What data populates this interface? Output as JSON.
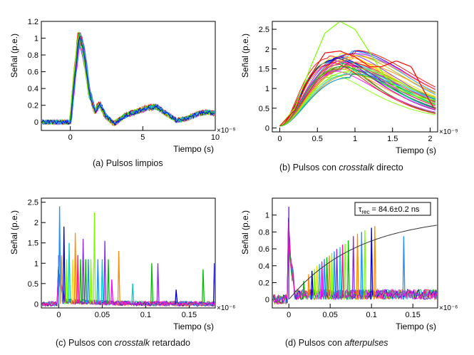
{
  "figure": {
    "captions": [
      {
        "pre": "(a) Pulsos limpios",
        "em": "",
        "post": ""
      },
      {
        "pre": "(b) Pulsos con ",
        "em": "crosstalk",
        "post": " directo"
      },
      {
        "pre": "(c) Pulsos con ",
        "em": "crosstalk",
        "post": " retardado"
      },
      {
        "pre": "(d) Pulsos con ",
        "em": "afterpulses",
        "post": ""
      }
    ]
  },
  "series_colors": [
    "#ff0000",
    "#ff8c00",
    "#ffd700",
    "#7fff00",
    "#00c000",
    "#00ced1",
    "#1e90ff",
    "#0000cd",
    "#8a2be2",
    "#ff00ff",
    "#ff1493"
  ],
  "chart_data": [
    {
      "type": "line",
      "xlabel": "Tiempo (s)",
      "ylabel": "Señal (p.e.)",
      "x_multiplier": "×10⁻⁹",
      "xlim": [
        -2,
        10
      ],
      "ylim": [
        -0.1,
        1.2
      ],
      "xticks": [
        "0",
        "5",
        "10"
      ],
      "yticks": [
        "0",
        "0.2",
        "0.4",
        "0.6",
        "0.8",
        "1",
        "1.2"
      ],
      "grid": false,
      "waveform_template": {
        "x": [
          -2,
          0,
          0.3,
          0.6,
          0.9,
          1.3,
          1.7,
          2.0,
          2.4,
          3.0,
          3.8,
          4.5,
          5.3,
          6.0,
          6.6,
          7.3,
          8.0,
          8.8,
          9.5,
          10
        ],
        "y": [
          0.0,
          0.0,
          0.55,
          1.02,
          0.85,
          0.35,
          0.12,
          0.22,
          0.08,
          -0.02,
          0.08,
          0.12,
          0.17,
          0.18,
          0.1,
          0.02,
          0.04,
          0.1,
          0.12,
          0.1
        ]
      },
      "n_traces": 30,
      "annotation": null
    },
    {
      "type": "line",
      "xlabel": "Tiempo (s)",
      "ylabel": "Señal (p.e.)",
      "x_multiplier": "×10⁻⁹",
      "xlim": [
        -0.1,
        2.1
      ],
      "ylim": [
        -0.1,
        2.7
      ],
      "xticks": [
        "0",
        "0.5",
        "1",
        "1.5",
        "2"
      ],
      "yticks": [
        "0",
        "0.5",
        "1",
        "1.5",
        "2",
        "2.5"
      ],
      "grid": false,
      "pulse_peak_range": [
        1.3,
        2.05
      ],
      "pulse_peak_time_range": [
        0.65,
        1.0
      ],
      "n_traces": 38,
      "highlighted_traces": [
        {
          "color": "#7fff00",
          "x": [
            0,
            0.2,
            0.4,
            0.6,
            0.8,
            1.0,
            1.2,
            1.4,
            1.6,
            1.8,
            2.0,
            2.1
          ],
          "y": [
            0.05,
            0.5,
            1.5,
            2.4,
            2.7,
            2.5,
            1.9,
            1.3,
            0.95,
            0.8,
            0.72,
            0.7
          ]
        },
        {
          "color": "#ff0000",
          "x": [
            0,
            0.2,
            0.4,
            0.6,
            0.8,
            1.0,
            1.2,
            1.35,
            1.55,
            1.75,
            1.9,
            2.05
          ],
          "y": [
            0.05,
            0.45,
            1.3,
            1.9,
            1.95,
            1.8,
            1.55,
            1.55,
            1.7,
            1.55,
            1.0,
            0.5
          ]
        }
      ],
      "annotation": null
    },
    {
      "type": "line",
      "xlabel": "Tiempo (s)",
      "ylabel": "Señal (p.e.)",
      "x_multiplier": "×10⁻⁶",
      "xlim": [
        -0.02,
        0.18
      ],
      "ylim": [
        -0.1,
        2.6
      ],
      "xticks": [
        "0",
        "0.05",
        "0.1",
        "0.15"
      ],
      "yticks": [
        "0",
        "0.5",
        "1",
        "1.5",
        "2",
        "2.5"
      ],
      "grid": false,
      "main_pulse_time": 0.0,
      "spikes": [
        {
          "t": 0.001,
          "h": 2.4,
          "c": "#1e90ff"
        },
        {
          "t": 0.003,
          "h": 1.2,
          "c": "#ff8c00"
        },
        {
          "t": 0.006,
          "h": 1.9,
          "c": "#0000cd"
        },
        {
          "t": 0.009,
          "h": 1.1,
          "c": "#7fff00"
        },
        {
          "t": 0.012,
          "h": 1.5,
          "c": "#00ced1"
        },
        {
          "t": 0.016,
          "h": 1.1,
          "c": "#ffd700"
        },
        {
          "t": 0.019,
          "h": 1.75,
          "c": "#ff8c00"
        },
        {
          "t": 0.022,
          "h": 1.2,
          "c": "#ff1493"
        },
        {
          "t": 0.025,
          "h": 1.1,
          "c": "#00c000"
        },
        {
          "t": 0.028,
          "h": 1.6,
          "c": "#8a2be2"
        },
        {
          "t": 0.031,
          "h": 1.1,
          "c": "#00c000"
        },
        {
          "t": 0.034,
          "h": 1.1,
          "c": "#1e90ff"
        },
        {
          "t": 0.037,
          "h": 1.1,
          "c": "#7fff00"
        },
        {
          "t": 0.041,
          "h": 2.25,
          "c": "#7fff00"
        },
        {
          "t": 0.045,
          "h": 1.1,
          "c": "#1e90ff"
        },
        {
          "t": 0.05,
          "h": 1.1,
          "c": "#00ced1"
        },
        {
          "t": 0.053,
          "h": 1.55,
          "c": "#8a2be2"
        },
        {
          "t": 0.057,
          "h": 1.1,
          "c": "#00c000"
        },
        {
          "t": 0.061,
          "h": 0.6,
          "c": "#ff00ff"
        },
        {
          "t": 0.069,
          "h": 1.3,
          "c": "#ff8c00"
        },
        {
          "t": 0.085,
          "h": 0.5,
          "c": "#00ced1"
        },
        {
          "t": 0.107,
          "h": 1.0,
          "c": "#00c000"
        },
        {
          "t": 0.114,
          "h": 1.0,
          "c": "#8a2be2"
        },
        {
          "t": 0.135,
          "h": 0.35,
          "c": "#0000cd"
        },
        {
          "t": 0.166,
          "h": 0.85,
          "c": "#00c000"
        },
        {
          "t": 0.179,
          "h": 1.0,
          "c": "#0000cd"
        }
      ],
      "n_baseline_traces": 11,
      "annotation": null
    },
    {
      "type": "line",
      "xlabel": "Tiempo (s)",
      "ylabel": "Señal (p.e.)",
      "x_multiplier": "×10⁻⁶",
      "xlim": [
        -0.02,
        0.18
      ],
      "ylim": [
        -0.1,
        1.2
      ],
      "xticks": [
        "0",
        "0.05",
        "0.1",
        "0.15"
      ],
      "yticks": [
        "0",
        "0.2",
        "0.4",
        "0.6",
        "0.8",
        "1"
      ],
      "grid": false,
      "main_pulse_time": 0.0,
      "recovery_fit": {
        "tau": 0.0846,
        "amplitude": 1.0,
        "t0": 0.0,
        "color": "#333333"
      },
      "spikes": [
        {
          "t": 0.018,
          "h": 0.22,
          "c": "#00c000"
        },
        {
          "t": 0.024,
          "h": 0.3,
          "c": "#ff8c00"
        },
        {
          "t": 0.028,
          "h": 0.34,
          "c": "#0000cd"
        },
        {
          "t": 0.031,
          "h": 0.36,
          "c": "#7fff00"
        },
        {
          "t": 0.034,
          "h": 0.4,
          "c": "#ffd700"
        },
        {
          "t": 0.037,
          "h": 0.42,
          "c": "#00ced1"
        },
        {
          "t": 0.04,
          "h": 0.45,
          "c": "#ff00ff"
        },
        {
          "t": 0.043,
          "h": 0.48,
          "c": "#1e90ff"
        },
        {
          "t": 0.046,
          "h": 0.5,
          "c": "#00c000"
        },
        {
          "t": 0.049,
          "h": 0.52,
          "c": "#ff8c00"
        },
        {
          "t": 0.052,
          "h": 0.55,
          "c": "#7fff00"
        },
        {
          "t": 0.055,
          "h": 0.57,
          "c": "#1e90ff"
        },
        {
          "t": 0.058,
          "h": 0.6,
          "c": "#8a2be2"
        },
        {
          "t": 0.062,
          "h": 0.62,
          "c": "#00ced1"
        },
        {
          "t": 0.065,
          "h": 0.65,
          "c": "#ff1493"
        },
        {
          "t": 0.068,
          "h": 0.66,
          "c": "#7fff00"
        },
        {
          "t": 0.072,
          "h": 0.7,
          "c": "#00c000"
        },
        {
          "t": 0.078,
          "h": 0.75,
          "c": "#8a2be2"
        },
        {
          "t": 0.083,
          "h": 0.78,
          "c": "#ff8c00"
        },
        {
          "t": 0.088,
          "h": 0.8,
          "c": "#1e90ff"
        },
        {
          "t": 0.092,
          "h": 0.82,
          "c": "#7fff00"
        },
        {
          "t": 0.1,
          "h": 0.85,
          "c": "#0000cd"
        },
        {
          "t": 0.104,
          "h": 0.87,
          "c": "#ff8c00"
        },
        {
          "t": 0.139,
          "h": 0.75,
          "c": "#1e90ff"
        }
      ],
      "n_baseline_traces": 11,
      "annotation": {
        "label_sub": "rec",
        "value_text": " = 84.6±0.2 ns"
      }
    }
  ]
}
